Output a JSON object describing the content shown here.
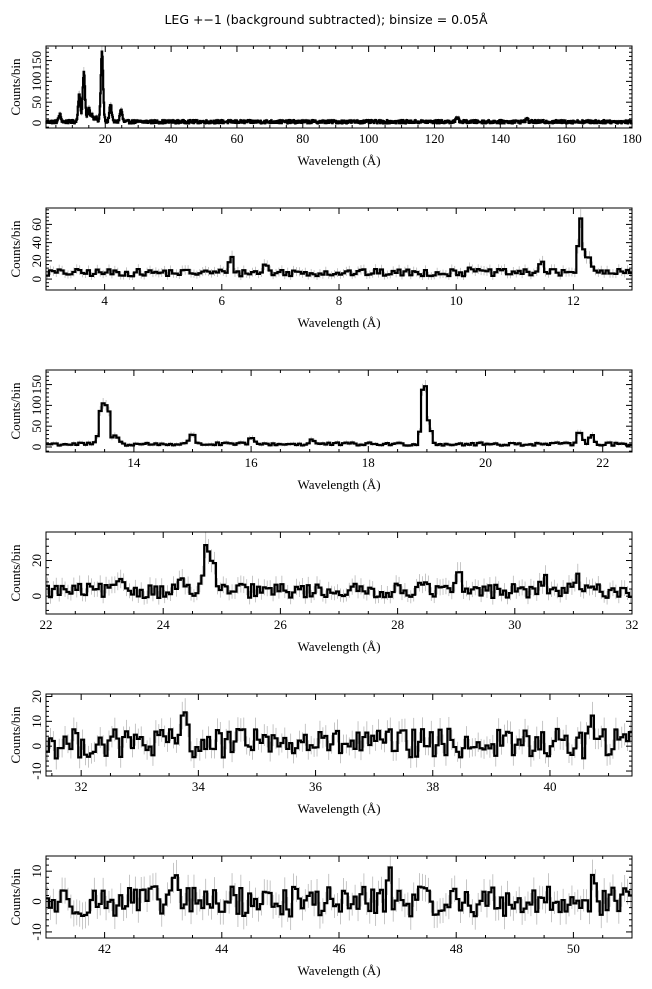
{
  "title": "LEG +−1 (background subtracted); binsize = 0.05Å",
  "colors": {
    "line": "#000000",
    "error_bars": "#b8b8b8",
    "background": "#ffffff"
  },
  "chart_data": [
    {
      "type": "line",
      "xlabel": "Wavelength (Å)",
      "ylabel": "Counts/bin",
      "xlim": [
        2,
        180
      ],
      "ylim": [
        -12,
        185
      ],
      "xticks": [
        20,
        40,
        60,
        80,
        100,
        120,
        140,
        160,
        180
      ],
      "yticks": [
        0,
        50,
        100,
        150
      ],
      "noise": 4,
      "baseline": 3,
      "peaks": [
        {
          "x": 6.2,
          "y": 20
        },
        {
          "x": 12.1,
          "y": 68
        },
        {
          "x": 13.5,
          "y": 122
        },
        {
          "x": 15.0,
          "y": 35
        },
        {
          "x": 19.0,
          "y": 170
        },
        {
          "x": 21.6,
          "y": 45
        },
        {
          "x": 24.8,
          "y": 32
        },
        {
          "x": 16.0,
          "y": 20
        },
        {
          "x": 17.1,
          "y": 15
        },
        {
          "x": 127,
          "y": 14
        },
        {
          "x": 148,
          "y": 10
        }
      ]
    },
    {
      "type": "line",
      "xlabel": "Wavelength (Å)",
      "ylabel": "Counts/bin",
      "xlim": [
        3,
        13
      ],
      "ylim": [
        -12,
        78
      ],
      "xticks": [
        4,
        6,
        8,
        10,
        12
      ],
      "yticks": [
        0,
        20,
        40,
        60
      ],
      "noise": 4,
      "baseline": 7,
      "peaks": [
        {
          "x": 6.15,
          "y": 24
        },
        {
          "x": 6.75,
          "y": 16
        },
        {
          "x": 11.45,
          "y": 20
        },
        {
          "x": 12.12,
          "y": 66
        },
        {
          "x": 12.25,
          "y": 28
        },
        {
          "x": 10.25,
          "y": 16
        }
      ]
    },
    {
      "type": "line",
      "xlabel": "Wavelength (Å)",
      "ylabel": "Counts/bin",
      "xlim": [
        12.5,
        22.5
      ],
      "ylim": [
        -12,
        185
      ],
      "xticks": [
        14,
        16,
        18,
        20,
        22
      ],
      "yticks": [
        0,
        50,
        100,
        150
      ],
      "noise": 4,
      "baseline": 7,
      "peaks": [
        {
          "x": 13.45,
          "y": 105
        },
        {
          "x": 13.55,
          "y": 98
        },
        {
          "x": 13.7,
          "y": 28
        },
        {
          "x": 15.0,
          "y": 36
        },
        {
          "x": 16.0,
          "y": 22
        },
        {
          "x": 17.05,
          "y": 18
        },
        {
          "x": 18.95,
          "y": 170
        },
        {
          "x": 19.05,
          "y": 42
        },
        {
          "x": 21.6,
          "y": 44
        },
        {
          "x": 21.8,
          "y": 30
        }
      ]
    },
    {
      "type": "line",
      "xlabel": "Wavelength (Å)",
      "ylabel": "Counts/bin",
      "xlim": [
        22,
        32
      ],
      "ylim": [
        -10,
        36
      ],
      "xticks": [
        22,
        24,
        26,
        28,
        30,
        32
      ],
      "yticks": [
        0,
        20
      ],
      "noise": 4,
      "baseline": 3,
      "peaks": [
        {
          "x": 24.75,
          "y": 31
        },
        {
          "x": 24.85,
          "y": 19
        },
        {
          "x": 23.3,
          "y": 12
        },
        {
          "x": 24.3,
          "y": 11
        },
        {
          "x": 28.4,
          "y": 12
        },
        {
          "x": 29.05,
          "y": 12
        },
        {
          "x": 30.5,
          "y": 10
        },
        {
          "x": 31.05,
          "y": 11
        }
      ]
    },
    {
      "type": "line",
      "xlabel": "Wavelength (Å)",
      "ylabel": "Counts/bin",
      "xlim": [
        31.4,
        41.4
      ],
      "ylim": [
        -12,
        21
      ],
      "xticks": [
        32,
        34,
        36,
        38,
        40
      ],
      "yticks": [
        -10,
        0,
        10,
        20
      ],
      "noise": 6,
      "baseline": 1,
      "peaks": [
        {
          "x": 33.75,
          "y": 16
        },
        {
          "x": 35.0,
          "y": 10
        },
        {
          "x": 40.7,
          "y": 11
        }
      ]
    },
    {
      "type": "line",
      "xlabel": "Wavelength (Å)",
      "ylabel": "Counts/bin",
      "xlim": [
        41,
        51
      ],
      "ylim": [
        -12,
        15
      ],
      "xticks": [
        42,
        44,
        46,
        48,
        50
      ],
      "yticks": [
        -10,
        0,
        10
      ],
      "noise": 5,
      "baseline": 0,
      "peaks": [
        {
          "x": 43.2,
          "y": 10
        },
        {
          "x": 46.85,
          "y": 9
        },
        {
          "x": 50.35,
          "y": 8
        }
      ]
    }
  ]
}
